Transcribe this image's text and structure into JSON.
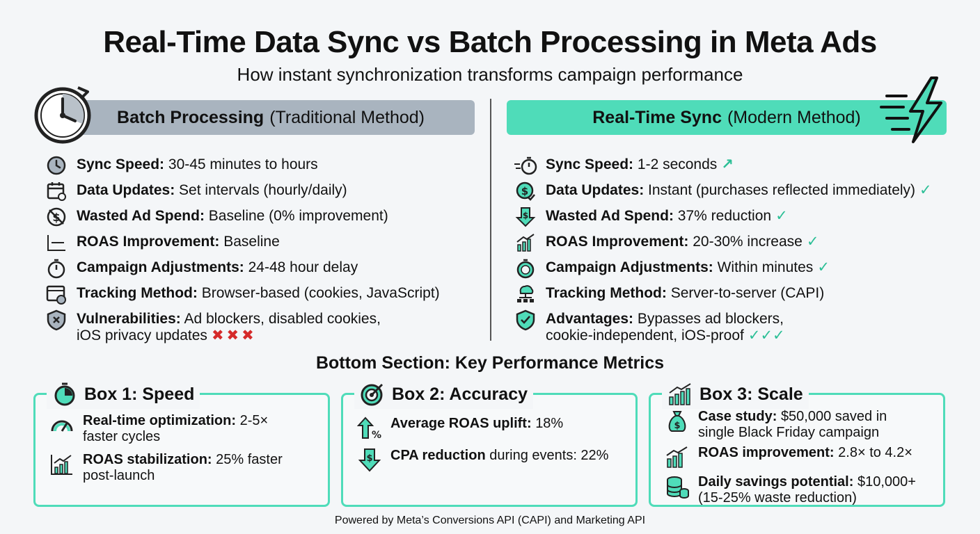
{
  "header": {
    "title": "Real-Time Data Sync vs Batch Processing in Meta Ads",
    "subtitle": "How instant synchronization transforms campaign performance"
  },
  "batch": {
    "heading_bold": "Batch Processing",
    "heading_rest": "(Traditional Method)",
    "items": [
      {
        "icon": "clock-icon",
        "label": "Sync Speed:",
        "value": "30-45 minutes to hours"
      },
      {
        "icon": "calendar-icon",
        "label": "Data Updates:",
        "value": "Set intervals (hourly/daily)"
      },
      {
        "icon": "no-dollar-icon",
        "label": "Wasted Ad Spend:",
        "value": "Baseline (0% improvement)"
      },
      {
        "icon": "flat-line-chart-icon",
        "label": "ROAS Improvement:",
        "value": "Baseline"
      },
      {
        "icon": "stopwatch-icon",
        "label": "Campaign Adjustments:",
        "value": "24-48 hour delay"
      },
      {
        "icon": "browser-cookie-icon",
        "label": "Tracking Method:",
        "value": "Browser-based (cookies, JavaScript)"
      },
      {
        "icon": "broken-shield-icon",
        "label": "Vulnerabilities:",
        "value": "Ad blockers, disabled cookies,",
        "value2": "iOS privacy updates",
        "marks": "✖✖✖"
      }
    ]
  },
  "realtime": {
    "heading_bold": "Real-Time Sync",
    "heading_rest": "(Modern Method)",
    "items": [
      {
        "icon": "fast-stopwatch-icon",
        "label": "Sync Speed:",
        "value": "1-2 seconds",
        "marks": "↗"
      },
      {
        "icon": "dollar-check-icon",
        "label": "Data Updates:",
        "value": "Instant (purchases reflected immediately)",
        "marks": "✓"
      },
      {
        "icon": "dollar-down-icon",
        "label": "Wasted Ad Spend:",
        "value": "37% reduction",
        "marks": "✓"
      },
      {
        "icon": "growth-chart-icon",
        "label": "ROAS Improvement:",
        "value": "20-30% increase",
        "marks": "✓"
      },
      {
        "icon": "stopwatch-icon",
        "label": "Campaign Adjustments:",
        "value": "Within minutes",
        "marks": "✓"
      },
      {
        "icon": "server-network-icon",
        "label": "Tracking Method:",
        "value": "Server-to-server (CAPI)"
      },
      {
        "icon": "shield-check-icon",
        "label": "Advantages:",
        "value": "Bypasses ad blockers,",
        "value2": "cookie-independent, iOS-proof",
        "marks": "✓✓✓"
      }
    ]
  },
  "bottom": {
    "heading": "Bottom Section: Key Performance Metrics",
    "boxes": [
      {
        "title": "Box 1: Speed",
        "items": [
          {
            "label": "Real-time optimization:",
            "value": "2-5×",
            "value2": "faster cycles"
          },
          {
            "label": "ROAS stabilization:",
            "value": "25% faster",
            "value2": "post-launch"
          }
        ]
      },
      {
        "title": "Box 2: Accuracy",
        "items": [
          {
            "label": "Average ROAS uplift:",
            "value": "18%"
          },
          {
            "label": "CPA reduction",
            "value": "during events: 22%"
          }
        ]
      },
      {
        "title": "Box 3: Scale",
        "items": [
          {
            "label": "Case study:",
            "value": "$50,000 saved in",
            "value2": "single Black Friday campaign"
          },
          {
            "label": "ROAS improvement:",
            "value": "2.8× to 4.2×"
          },
          {
            "label": "Daily savings potential:",
            "value": "$10,000+",
            "value2": "(15-25% waste reduction)"
          }
        ]
      }
    ]
  },
  "footer": "Powered by Meta’s Conversions API (CAPI) and Marketing API",
  "colors": {
    "accent": "#4fdcb9",
    "batch": "#a9b4bf",
    "check": "#2bbf96",
    "cross": "#d52a2a"
  }
}
